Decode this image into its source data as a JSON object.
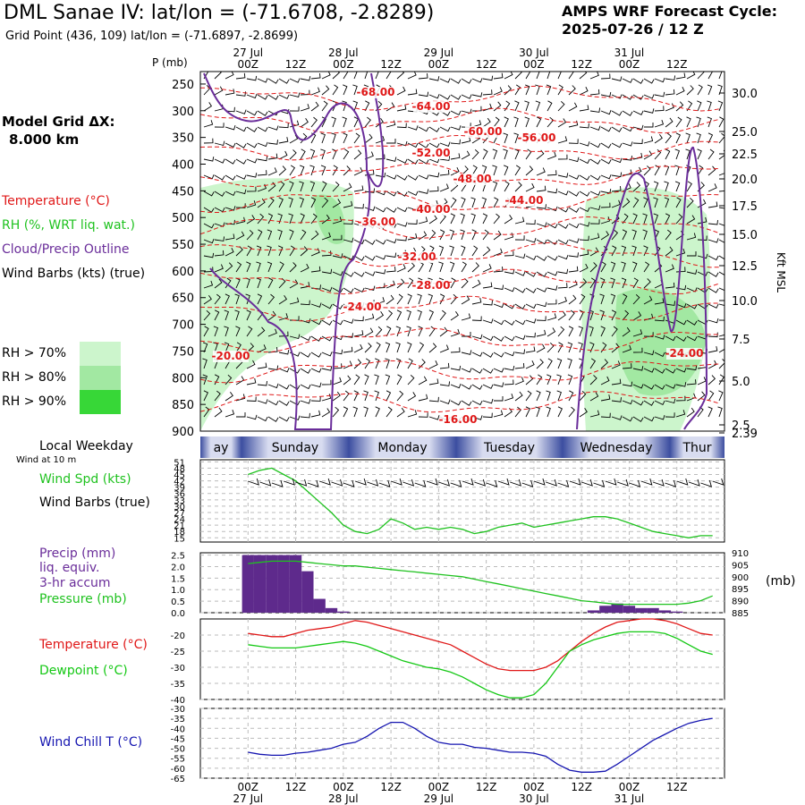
{
  "header": {
    "title": "DML Sanae IV:  lat/lon = (-71.6708, -2.8289)",
    "grid_point": "Grid Point (436, 109) lat/lon = (-71.6897, -2.8699)",
    "cycle_line1": "AMPS WRF Forecast Cycle:",
    "cycle_line2": "2025-07-26 / 12  Z",
    "model_grid_label": "Model Grid ΔX:",
    "model_grid_value": "8.000 km"
  },
  "colors": {
    "temperature": "#e01818",
    "rh": "#1fc21f",
    "cloud": "#6a2d9a",
    "wind": "#000000",
    "dewpoint": "#14c814",
    "windchill": "#1515b0",
    "precip": "#5e2a8c",
    "rh70": "#ccf5cc",
    "rh80": "#a2e8a2",
    "rh90": "#37d737"
  },
  "legend": {
    "temperature": "Temperature (°C)",
    "rh": "RH (%, WRT liq. wat.)",
    "cloud": "Cloud/Precip Outline",
    "wind": "Wind Barbs (kts) (true)",
    "rh_levels": [
      "RH > 70%",
      "RH > 80%",
      "RH > 90%"
    ]
  },
  "time_axis": {
    "top_dates": [
      "27 Jul",
      "28 Jul",
      "29 Jul",
      "30 Jul",
      "31 Jul"
    ],
    "hours": [
      "00Z",
      "12Z",
      "00Z",
      "12Z",
      "00Z",
      "12Z",
      "00Z",
      "12Z",
      "00Z",
      "12Z"
    ],
    "bottom_dates": [
      "27 Jul",
      "28 Jul",
      "29 Jul",
      "30 Jul",
      "31 Jul"
    ]
  },
  "weekday_bar": {
    "title": "Local Weekday",
    "days": [
      "ay",
      "Sunday",
      "Monday",
      "Tuesday",
      "Wednesday",
      "Thur"
    ]
  },
  "chart_data": [
    {
      "type": "heatmap",
      "ylabel": "P (mb)",
      "ylabel_right": "Kft MSL",
      "y_ticks": [
        250,
        300,
        350,
        400,
        450,
        500,
        550,
        600,
        650,
        700,
        750,
        800,
        850,
        900
      ],
      "ylim": [
        900,
        230
      ],
      "right_ticks": [
        "30.0",
        "25.0",
        "22.5",
        "20.0",
        "17.5",
        "15.0",
        "12.5",
        "10.0",
        "7.5",
        "5.0",
        "2.5",
        "2.39"
      ],
      "temperature_contour_labels": [
        "-68.00",
        "-64.00",
        "-60.00",
        "-56.00",
        "-52.00",
        "-48.00",
        "-44.00",
        "-40.00",
        "-36.00",
        "-32.00",
        "-28.00",
        "-24.00",
        "-20.00",
        "-16.00",
        "-24.00"
      ]
    },
    {
      "type": "line",
      "title": "Wind at 10 m",
      "labels": [
        "Wind Spd (kts)",
        "Wind Barbs (true)"
      ],
      "y_ticks": [
        51,
        48,
        45,
        42,
        39,
        36,
        33,
        30,
        27,
        24,
        21,
        18,
        15
      ],
      "ylim": [
        13,
        52
      ],
      "x_hours": [
        0,
        3,
        6,
        9,
        12,
        15,
        18,
        21,
        24,
        27,
        30,
        33,
        36,
        39,
        42,
        45,
        48,
        51,
        54,
        57,
        60,
        63,
        66,
        69,
        72,
        75,
        78,
        81,
        84,
        87,
        90,
        93,
        96,
        99,
        102,
        105,
        108,
        111,
        114,
        117
      ],
      "wind_speed": [
        45,
        47,
        48,
        45,
        42,
        37,
        32,
        27,
        21,
        18,
        17,
        19,
        24,
        22,
        19,
        20,
        19,
        20,
        19,
        17,
        18,
        20,
        21,
        22,
        20,
        21,
        22,
        23,
        24,
        25,
        25,
        24,
        22,
        20,
        18,
        17,
        16,
        15,
        16,
        16
      ]
    },
    {
      "type": "bar",
      "labels": [
        "Precip (mm)",
        "liq. equiv.",
        "3-hr accum",
        "Pressure (mb)"
      ],
      "y_ticks": [
        "2.5",
        "2.0",
        "1.5",
        "1.0",
        "0.5",
        "0.0"
      ],
      "ylim": [
        0,
        2.6
      ],
      "right_ticks": [
        "910",
        "905",
        "900",
        "895",
        "890",
        "885"
      ],
      "right_unit": "(mb)",
      "pressure_range": [
        885,
        910
      ],
      "precip_hours": [
        0,
        3,
        6,
        9,
        12,
        15,
        18,
        21,
        24,
        27,
        30,
        33,
        36,
        39,
        42,
        45,
        48,
        51,
        54,
        57,
        60,
        63,
        66,
        69,
        72,
        75,
        78,
        81,
        84,
        87,
        90,
        93,
        96,
        99,
        102,
        105,
        108,
        111,
        114,
        117
      ],
      "precip_mm": [
        2.5,
        2.5,
        2.5,
        2.5,
        2.5,
        1.8,
        0.6,
        0.2,
        0.05,
        0,
        0,
        0,
        0,
        0,
        0,
        0,
        0,
        0,
        0,
        0,
        0,
        0,
        0,
        0,
        0,
        0,
        0,
        0,
        0,
        0.1,
        0.3,
        0.4,
        0.3,
        0.2,
        0.2,
        0.1,
        0.05,
        0,
        0,
        0
      ],
      "pressure_mb": [
        905.5,
        906,
        906.5,
        906.5,
        906.5,
        906,
        905.5,
        905,
        904.5,
        904.5,
        904,
        903.5,
        903,
        902.5,
        902,
        901.5,
        901,
        900.5,
        900,
        899,
        898,
        897,
        896,
        895,
        894,
        893,
        892,
        891,
        890,
        889.5,
        889,
        888.5,
        888.5,
        888.5,
        888.5,
        888.5,
        888.5,
        889,
        890,
        892
      ]
    },
    {
      "type": "line",
      "series_labels": [
        "Temperature (°C)",
        "Dewpoint (°C)"
      ],
      "y_ticks": [
        -20,
        -25,
        -30,
        -35,
        -40
      ],
      "ylim": [
        -40,
        -15
      ],
      "x_hours": [
        0,
        3,
        6,
        9,
        12,
        15,
        18,
        21,
        24,
        27,
        30,
        33,
        36,
        39,
        42,
        45,
        48,
        51,
        54,
        57,
        60,
        63,
        66,
        69,
        72,
        75,
        78,
        81,
        84,
        87,
        90,
        93,
        96,
        99,
        102,
        105,
        108,
        111,
        114,
        117
      ],
      "temperature": [
        -19.5,
        -20,
        -20.5,
        -20.5,
        -19.5,
        -18.5,
        -18,
        -17.5,
        -16.5,
        -15.5,
        -16,
        -17,
        -18,
        -19,
        -20,
        -21,
        -22,
        -23,
        -25,
        -27,
        -29,
        -30.5,
        -31,
        -31,
        -31,
        -30,
        -28,
        -25,
        -22,
        -19.5,
        -17.5,
        -16,
        -15.5,
        -15,
        -15,
        -15.5,
        -16.5,
        -18,
        -19.5,
        -20
      ],
      "dewpoint": [
        -23,
        -23.5,
        -24,
        -24,
        -24,
        -23.5,
        -23,
        -22.5,
        -22,
        -22.5,
        -23.5,
        -25,
        -26.5,
        -28,
        -29,
        -30,
        -30.5,
        -31.5,
        -33,
        -35,
        -37,
        -38.5,
        -39.5,
        -39.5,
        -38.5,
        -35,
        -30,
        -25,
        -23,
        -21.5,
        -20.5,
        -19.5,
        -19,
        -19,
        -19,
        -19.5,
        -21,
        -23,
        -25,
        -26
      ]
    },
    {
      "type": "line",
      "series_labels": [
        "Wind Chill T (°C)"
      ],
      "y_ticks": [
        -30,
        -35,
        -40,
        -45,
        -50,
        -55,
        -60,
        -65
      ],
      "ylim": [
        -65,
        -30
      ],
      "x_hours": [
        0,
        3,
        6,
        9,
        12,
        15,
        18,
        21,
        24,
        27,
        30,
        33,
        36,
        39,
        42,
        45,
        48,
        51,
        54,
        57,
        60,
        63,
        66,
        69,
        72,
        75,
        78,
        81,
        84,
        87,
        90,
        93,
        96,
        99,
        102,
        105,
        108,
        111,
        114,
        117
      ],
      "wind_chill": [
        -52,
        -53,
        -53.5,
        -53.5,
        -52.5,
        -52,
        -51,
        -50,
        -48,
        -47,
        -44,
        -40,
        -37,
        -37,
        -40,
        -44,
        -47,
        -48,
        -48,
        -49.5,
        -50,
        -51,
        -52,
        -52,
        -52.5,
        -54,
        -58,
        -61,
        -62,
        -62,
        -61.5,
        -58,
        -54,
        -50,
        -46,
        -43,
        -40,
        -37.5,
        -36,
        -35
      ]
    }
  ]
}
